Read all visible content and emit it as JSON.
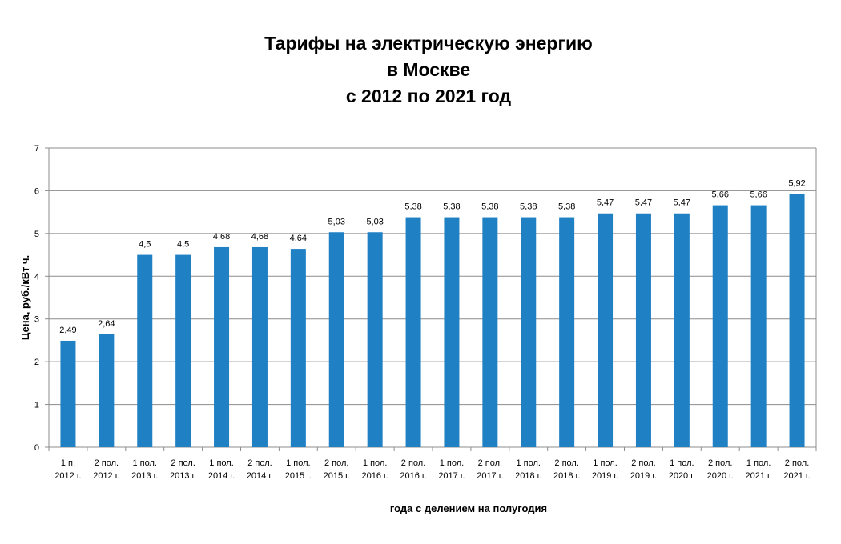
{
  "chart_data": {
    "type": "bar",
    "title_lines": [
      "Тарифы на электрическую энергию",
      "в Москве",
      "с 2012 по 2021 год"
    ],
    "xlabel": "года с делением на полугодия",
    "ylabel": "Цена, руб./кВт ч.",
    "ylim": [
      0,
      7
    ],
    "yticks": [
      "0",
      "1",
      "2",
      "3",
      "4",
      "5",
      "6",
      "7"
    ],
    "grid": true,
    "legend": "none",
    "bar_color": "#1F80C4",
    "categories": [
      [
        "1 п.",
        "2012 г."
      ],
      [
        "2 пол.",
        "2012 г."
      ],
      [
        "1 пол.",
        "2013 г."
      ],
      [
        "2 пол.",
        "2013 г."
      ],
      [
        "1 пол.",
        "2014 г."
      ],
      [
        "2 пол.",
        "2014 г."
      ],
      [
        "1 пол.",
        "2015 г."
      ],
      [
        "2 пол.",
        "2015 г."
      ],
      [
        "1 пол.",
        "2016 г."
      ],
      [
        "2 пол.",
        "2016 г."
      ],
      [
        "1 пол.",
        "2017 г."
      ],
      [
        "2 пол.",
        "2017 г."
      ],
      [
        "1 пол.",
        "2018 г."
      ],
      [
        "2 пол.",
        "2018 г."
      ],
      [
        "1 пол.",
        "2019 г."
      ],
      [
        "2 пол.",
        "2019 г."
      ],
      [
        "1 пол.",
        "2020 г."
      ],
      [
        "2 пол.",
        "2020 г."
      ],
      [
        "1 пол.",
        "2021 г."
      ],
      [
        "2 пол.",
        "2021 г."
      ]
    ],
    "values": [
      2.49,
      2.64,
      4.5,
      4.5,
      4.68,
      4.68,
      4.64,
      5.03,
      5.03,
      5.38,
      5.38,
      5.38,
      5.38,
      5.38,
      5.47,
      5.47,
      5.47,
      5.66,
      5.66,
      5.92
    ],
    "value_labels": [
      "2,49",
      "2,64",
      "4,5",
      "4,5",
      "4,68",
      "4,68",
      "4,64",
      "5,03",
      "5,03",
      "5,38",
      "5,38",
      "5,38",
      "5,38",
      "5,38",
      "5,47",
      "5,47",
      "5,47",
      "5,66",
      "5,66",
      "5,92"
    ]
  }
}
